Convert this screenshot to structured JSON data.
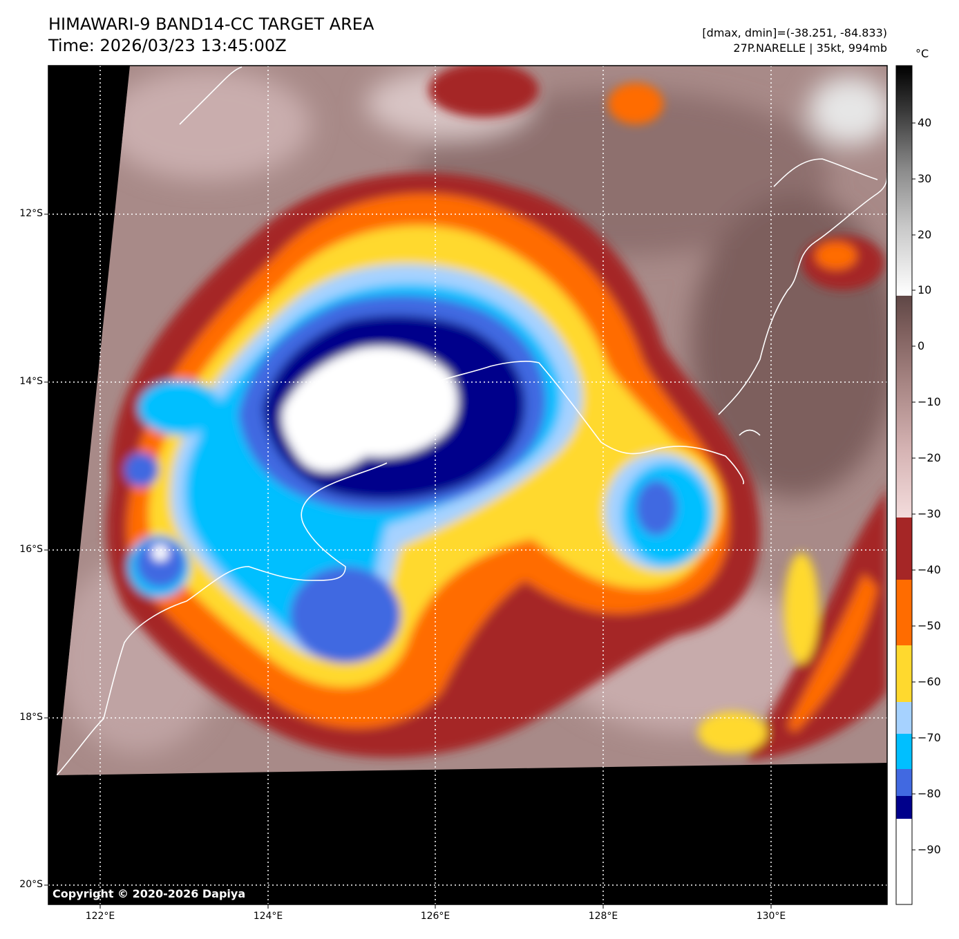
{
  "header": {
    "title_line1": "HIMAWARI-9 BAND14-CC TARGET AREA",
    "title_line2": "Time: 2026/03/23 13:45:00Z",
    "info_line1": "[dmax, dmin]=(-38.251, -84.833)",
    "info_line2": "27P.NARELLE | 35kt, 994mb"
  },
  "map": {
    "lat_labels": [
      "12°S",
      "14°S",
      "16°S",
      "18°S",
      "20°S"
    ],
    "lon_labels": [
      "122°E",
      "124°E",
      "126°E",
      "128°E",
      "130°E"
    ],
    "copyright": "Copyright © 2020-2026 Dapiya"
  },
  "colorbar": {
    "unit": "°C",
    "tick_labels": [
      "40",
      "30",
      "20",
      "10",
      "0",
      "−10",
      "−20",
      "−30",
      "−40",
      "−50",
      "−60",
      "−70",
      "−80",
      "−90"
    ],
    "bands": [
      {
        "from": -100,
        "to": -85,
        "color": "#ffffff"
      },
      {
        "from": -85,
        "to": -81,
        "color": "#00008b"
      },
      {
        "from": -81,
        "to": -75,
        "color": "#4169e1"
      },
      {
        "from": -75,
        "to": -69,
        "color": "#00bfff"
      },
      {
        "from": -69,
        "to": -63,
        "color": "#a6d2ff"
      },
      {
        "from": -63,
        "to": -51,
        "color": "#ffd92e"
      },
      {
        "from": -51,
        "to": -40,
        "color": "#ff6c00"
      },
      {
        "from": -40,
        "to": -29,
        "color": "#a52626"
      }
    ],
    "gradient_colors": [
      "#f3dcdc",
      "#d6b4b4",
      "#a88684",
      "#7d5e5c",
      "#5f4746"
    ],
    "gray_colors": [
      "#ffffff",
      "#c8c8c8",
      "#8a8a8a",
      "#3a3a3a",
      "#000000"
    ]
  },
  "colors": {
    "background_outside": "#000000",
    "cloud_warm": "#a88a88",
    "coastline": "#ffffff",
    "grid": "#ffffff"
  }
}
